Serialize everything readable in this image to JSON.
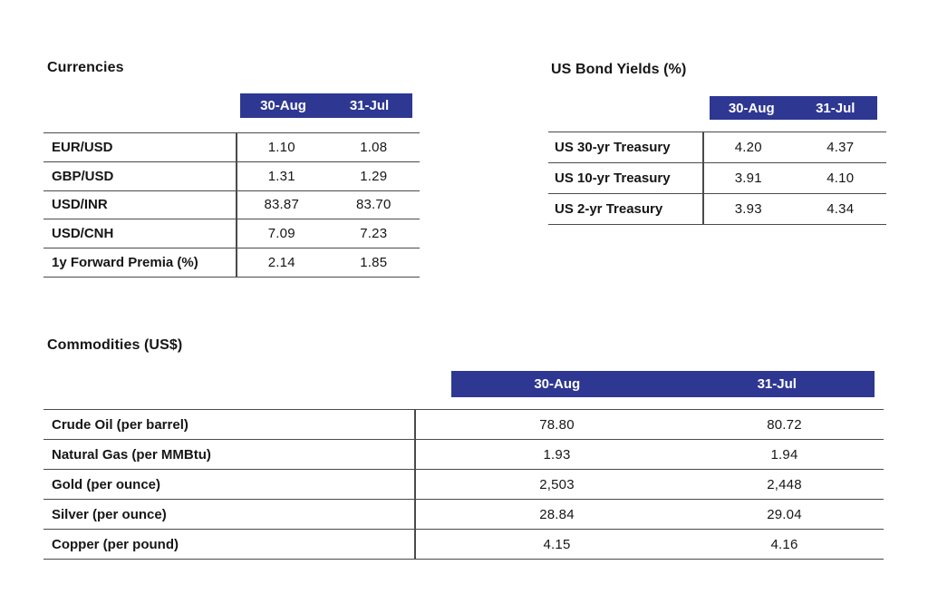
{
  "colors": {
    "band_bg": "#2e3792",
    "band_text": "#ffffff",
    "text": "#161616",
    "line": "#4a4a4a",
    "page_bg": "#ffffff"
  },
  "sections": {
    "currencies": {
      "title": "Currencies",
      "columns": [
        "30-Aug",
        "31-Jul"
      ],
      "rows": [
        {
          "label": "EUR/USD",
          "values": [
            "1.10",
            "1.08"
          ]
        },
        {
          "label": "GBP/USD",
          "values": [
            "1.31",
            "1.29"
          ]
        },
        {
          "label": "USD/INR",
          "values": [
            "83.87",
            "83.70"
          ]
        },
        {
          "label": "USD/CNH",
          "values": [
            "7.09",
            "7.23"
          ]
        },
        {
          "label": "1y Forward Premia (%)",
          "values": [
            "2.14",
            "1.85"
          ]
        }
      ]
    },
    "bond_yields": {
      "title": "US Bond Yields (%)",
      "columns": [
        "30-Aug",
        "31-Jul"
      ],
      "rows": [
        {
          "label": "US 30-yr Treasury",
          "values": [
            "4.20",
            "4.37"
          ]
        },
        {
          "label": "US 10-yr Treasury",
          "values": [
            "3.91",
            "4.10"
          ]
        },
        {
          "label": "US 2-yr Treasury",
          "values": [
            "3.93",
            "4.34"
          ]
        }
      ]
    },
    "commodities": {
      "title": "Commodities (US$)",
      "columns": [
        "30-Aug",
        "31-Jul"
      ],
      "rows": [
        {
          "label": "Crude Oil (per barrel)",
          "values": [
            "78.80",
            "80.72"
          ]
        },
        {
          "label": "Natural Gas (per MMBtu)",
          "values": [
            "1.93",
            "1.94"
          ]
        },
        {
          "label": "Gold (per ounce)",
          "values": [
            "2,503",
            "2,448"
          ]
        },
        {
          "label": "Silver (per ounce)",
          "values": [
            "28.84",
            "29.04"
          ]
        },
        {
          "label": "Copper (per pound)",
          "values": [
            "4.15",
            "4.16"
          ]
        }
      ]
    }
  }
}
